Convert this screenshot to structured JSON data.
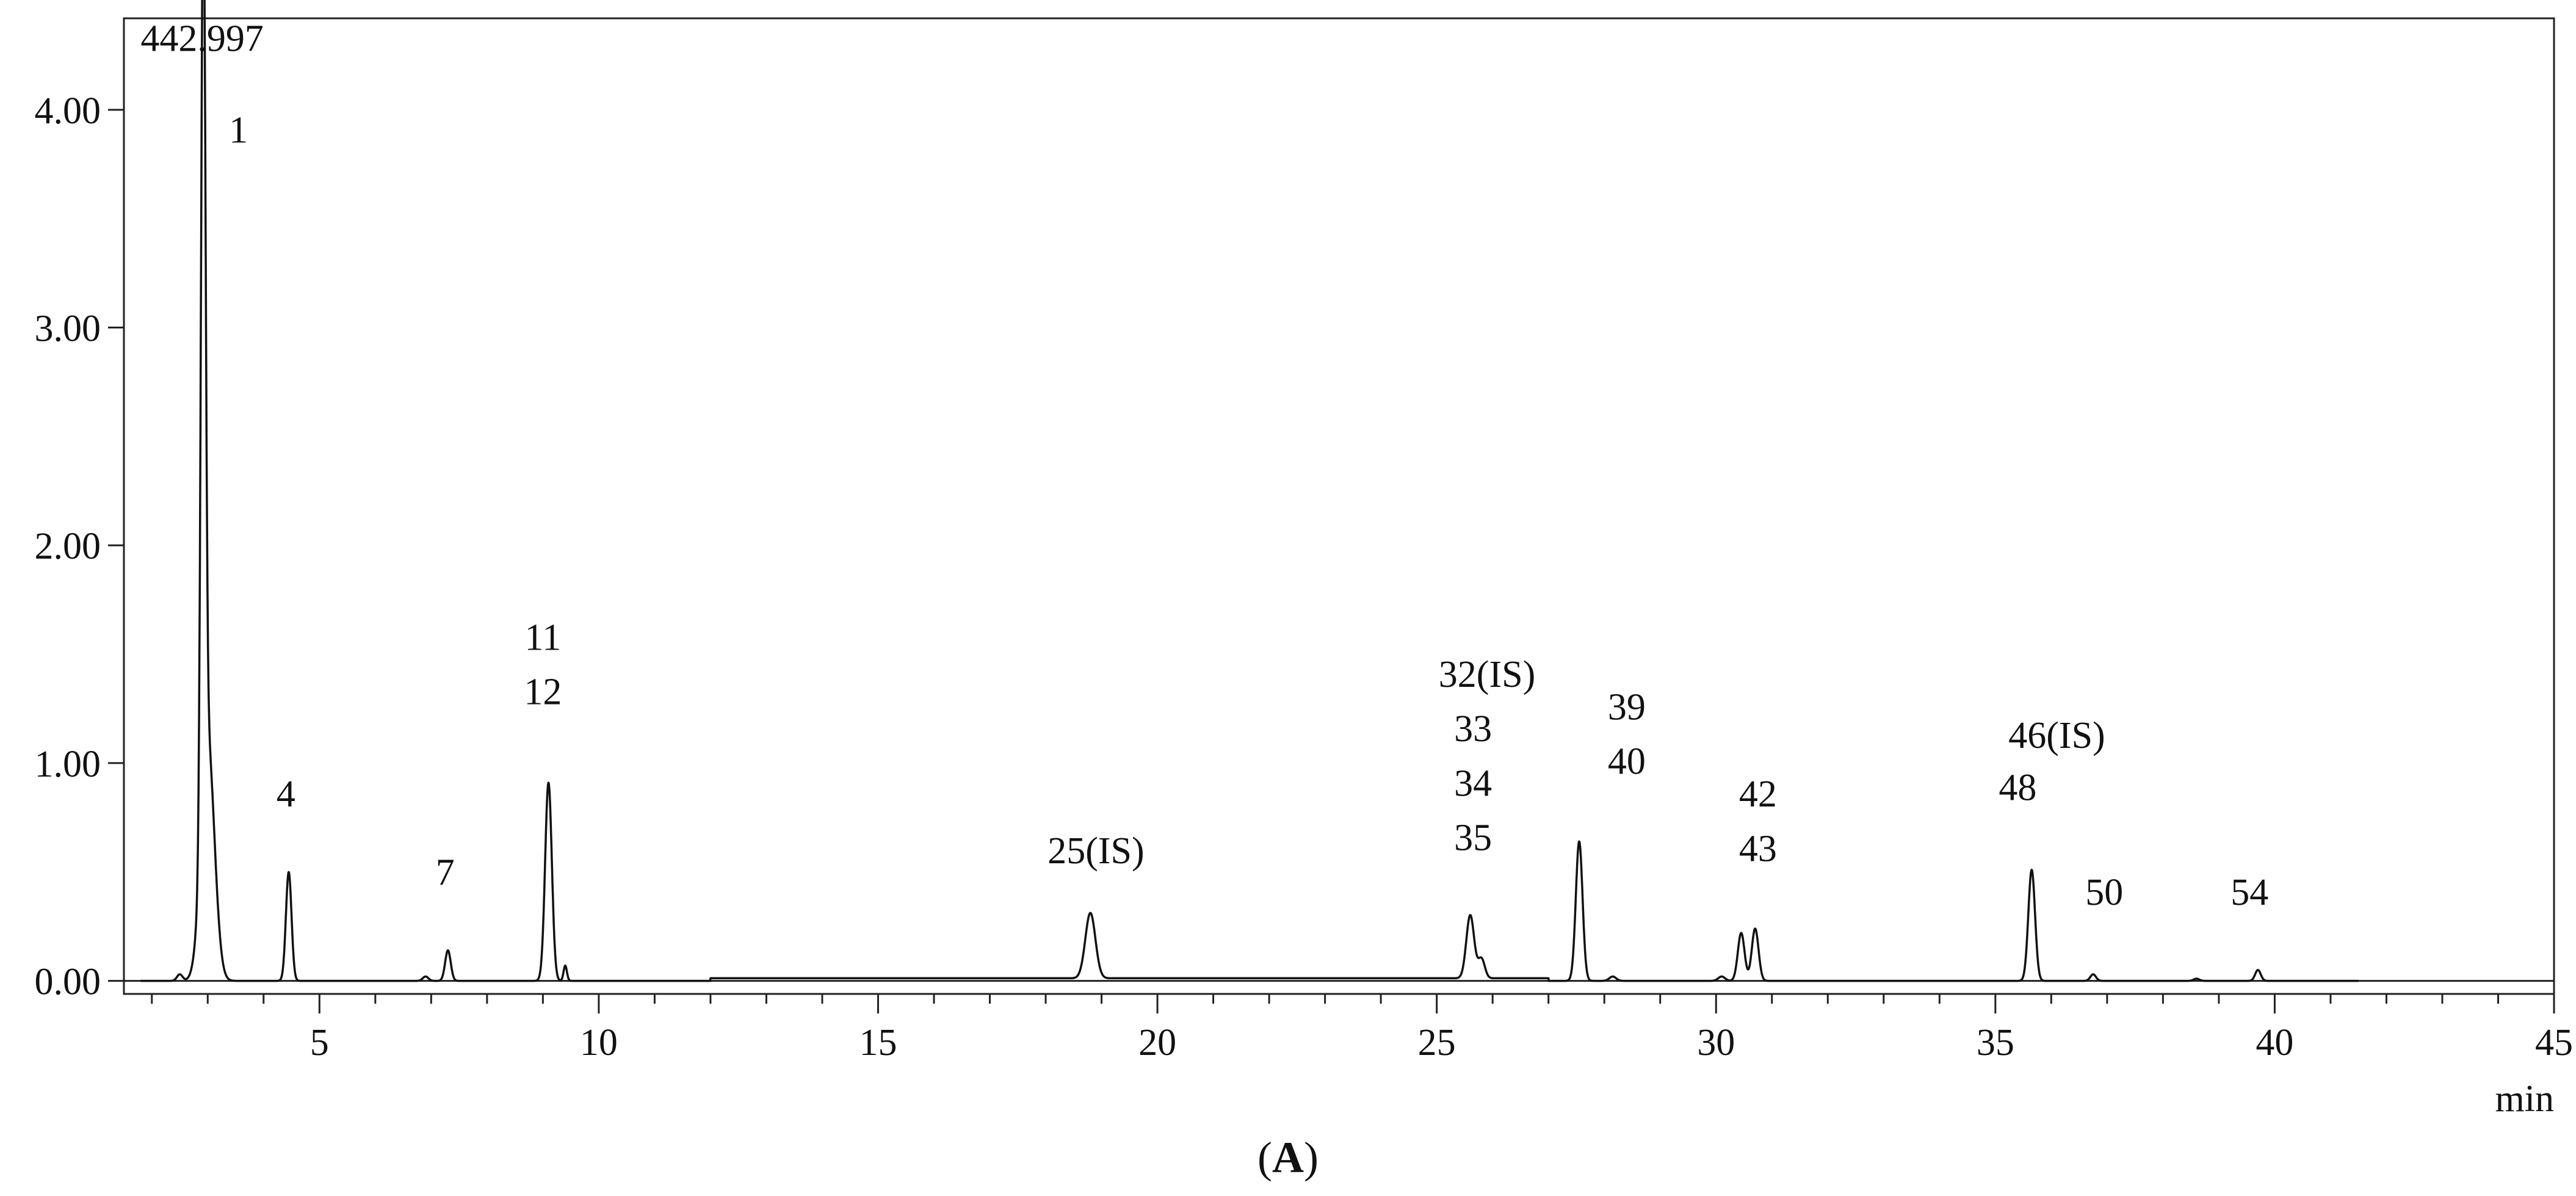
{
  "chart_data": {
    "type": "line",
    "title": "",
    "xlabel": "min",
    "ylabel": "",
    "xlim": [
      1.5,
      45
    ],
    "ylim": [
      -0.06,
      4.42
    ],
    "x_ticks": [
      5,
      10,
      15,
      20,
      25,
      30,
      35,
      40,
      45
    ],
    "x_tick_labels": [
      "5",
      "10",
      "15",
      "20",
      "25",
      "30",
      "35",
      "40",
      "45"
    ],
    "y_ticks": [
      0,
      1,
      2,
      3,
      4
    ],
    "y_tick_labels": [
      "0.00",
      "1.00",
      "2.00",
      "3.00",
      "4.00"
    ],
    "grid": false,
    "series": [
      {
        "peaks": [
          {
            "x": 2.5,
            "y": 0.03,
            "w": 0.05
          },
          {
            "x": 2.92,
            "y": 4.2,
            "w": 0.04
          },
          {
            "x": 3.0,
            "y": 1.1,
            "w": 0.12
          },
          {
            "x": 4.45,
            "y": 0.5,
            "w": 0.05
          },
          {
            "x": 6.9,
            "y": 0.02,
            "w": 0.05
          },
          {
            "x": 7.3,
            "y": 0.14,
            "w": 0.05
          },
          {
            "x": 9.1,
            "y": 0.91,
            "w": 0.06
          },
          {
            "x": 9.4,
            "y": 0.07,
            "w": 0.03
          },
          {
            "x": 18.8,
            "y": 0.3,
            "w": 0.09
          },
          {
            "x": 25.6,
            "y": 0.29,
            "w": 0.07
          },
          {
            "x": 25.8,
            "y": 0.09,
            "w": 0.06
          },
          {
            "x": 27.55,
            "y": 0.64,
            "w": 0.06
          },
          {
            "x": 28.15,
            "y": 0.02,
            "w": 0.06
          },
          {
            "x": 30.1,
            "y": 0.02,
            "w": 0.06
          },
          {
            "x": 30.45,
            "y": 0.22,
            "w": 0.06
          },
          {
            "x": 30.7,
            "y": 0.24,
            "w": 0.06
          },
          {
            "x": 35.65,
            "y": 0.51,
            "w": 0.06
          },
          {
            "x": 36.75,
            "y": 0.03,
            "w": 0.05
          },
          {
            "x": 38.6,
            "y": 0.01,
            "w": 0.05
          },
          {
            "x": 39.7,
            "y": 0.05,
            "w": 0.05
          }
        ]
      }
    ],
    "annotations": [
      {
        "text": "442.997",
        "x": 2.9,
        "y": 4.27
      },
      {
        "text": "1",
        "x": 3.55,
        "y": 3.85
      },
      {
        "text": "4",
        "x": 4.4,
        "y": 0.8
      },
      {
        "text": "7",
        "x": 7.25,
        "y": 0.44
      },
      {
        "text": "11",
        "x": 9.0,
        "y": 1.52
      },
      {
        "text": "12",
        "x": 9.0,
        "y": 1.27
      },
      {
        "text": "25(IS)",
        "x": 18.9,
        "y": 0.54
      },
      {
        "text": "32(IS)",
        "x": 25.9,
        "y": 1.35
      },
      {
        "text": "33",
        "x": 25.65,
        "y": 1.1
      },
      {
        "text": "34",
        "x": 25.65,
        "y": 0.85
      },
      {
        "text": "35",
        "x": 25.65,
        "y": 0.6
      },
      {
        "text": "39",
        "x": 28.4,
        "y": 1.2
      },
      {
        "text": "40",
        "x": 28.4,
        "y": 0.95
      },
      {
        "text": "42",
        "x": 30.75,
        "y": 0.8
      },
      {
        "text": "43",
        "x": 30.75,
        "y": 0.55
      },
      {
        "text": "46(IS)",
        "x": 36.1,
        "y": 1.07
      },
      {
        "text": "48",
        "x": 35.4,
        "y": 0.83
      },
      {
        "text": "50",
        "x": 36.95,
        "y": 0.35
      },
      {
        "text": "54",
        "x": 39.55,
        "y": 0.35
      }
    ]
  },
  "caption": {
    "text": "A"
  }
}
